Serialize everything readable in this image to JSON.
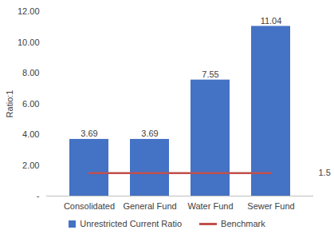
{
  "chart_data": {
    "type": "bar",
    "categories": [
      "Consolidated",
      "General Fund",
      "Water Fund",
      "Sewer Fund"
    ],
    "series": [
      {
        "name": "Unrestricted Current Ratio",
        "type": "bar",
        "color": "#4472c4",
        "values": [
          3.69,
          3.69,
          7.55,
          11.04
        ]
      },
      {
        "name": "Benchmark",
        "type": "line",
        "color": "#c0504d",
        "values": [
          1.5,
          1.5,
          1.5,
          1.5
        ]
      }
    ],
    "y_label": "Ratio:1",
    "ylim": [
      0,
      12
    ],
    "yticks": [
      {
        "value": 0,
        "label": "-"
      },
      {
        "value": 2,
        "label": "2.00"
      },
      {
        "value": 4,
        "label": "4.00"
      },
      {
        "value": 6,
        "label": "6.00"
      },
      {
        "value": 8,
        "label": "8.00"
      },
      {
        "value": 10,
        "label": "10.00"
      },
      {
        "value": 12,
        "label": "12.00"
      }
    ],
    "annotations": [
      {
        "text": "1.5",
        "y": 1.5
      }
    ],
    "data_labels": true,
    "grid": false,
    "legend": "bottom"
  }
}
